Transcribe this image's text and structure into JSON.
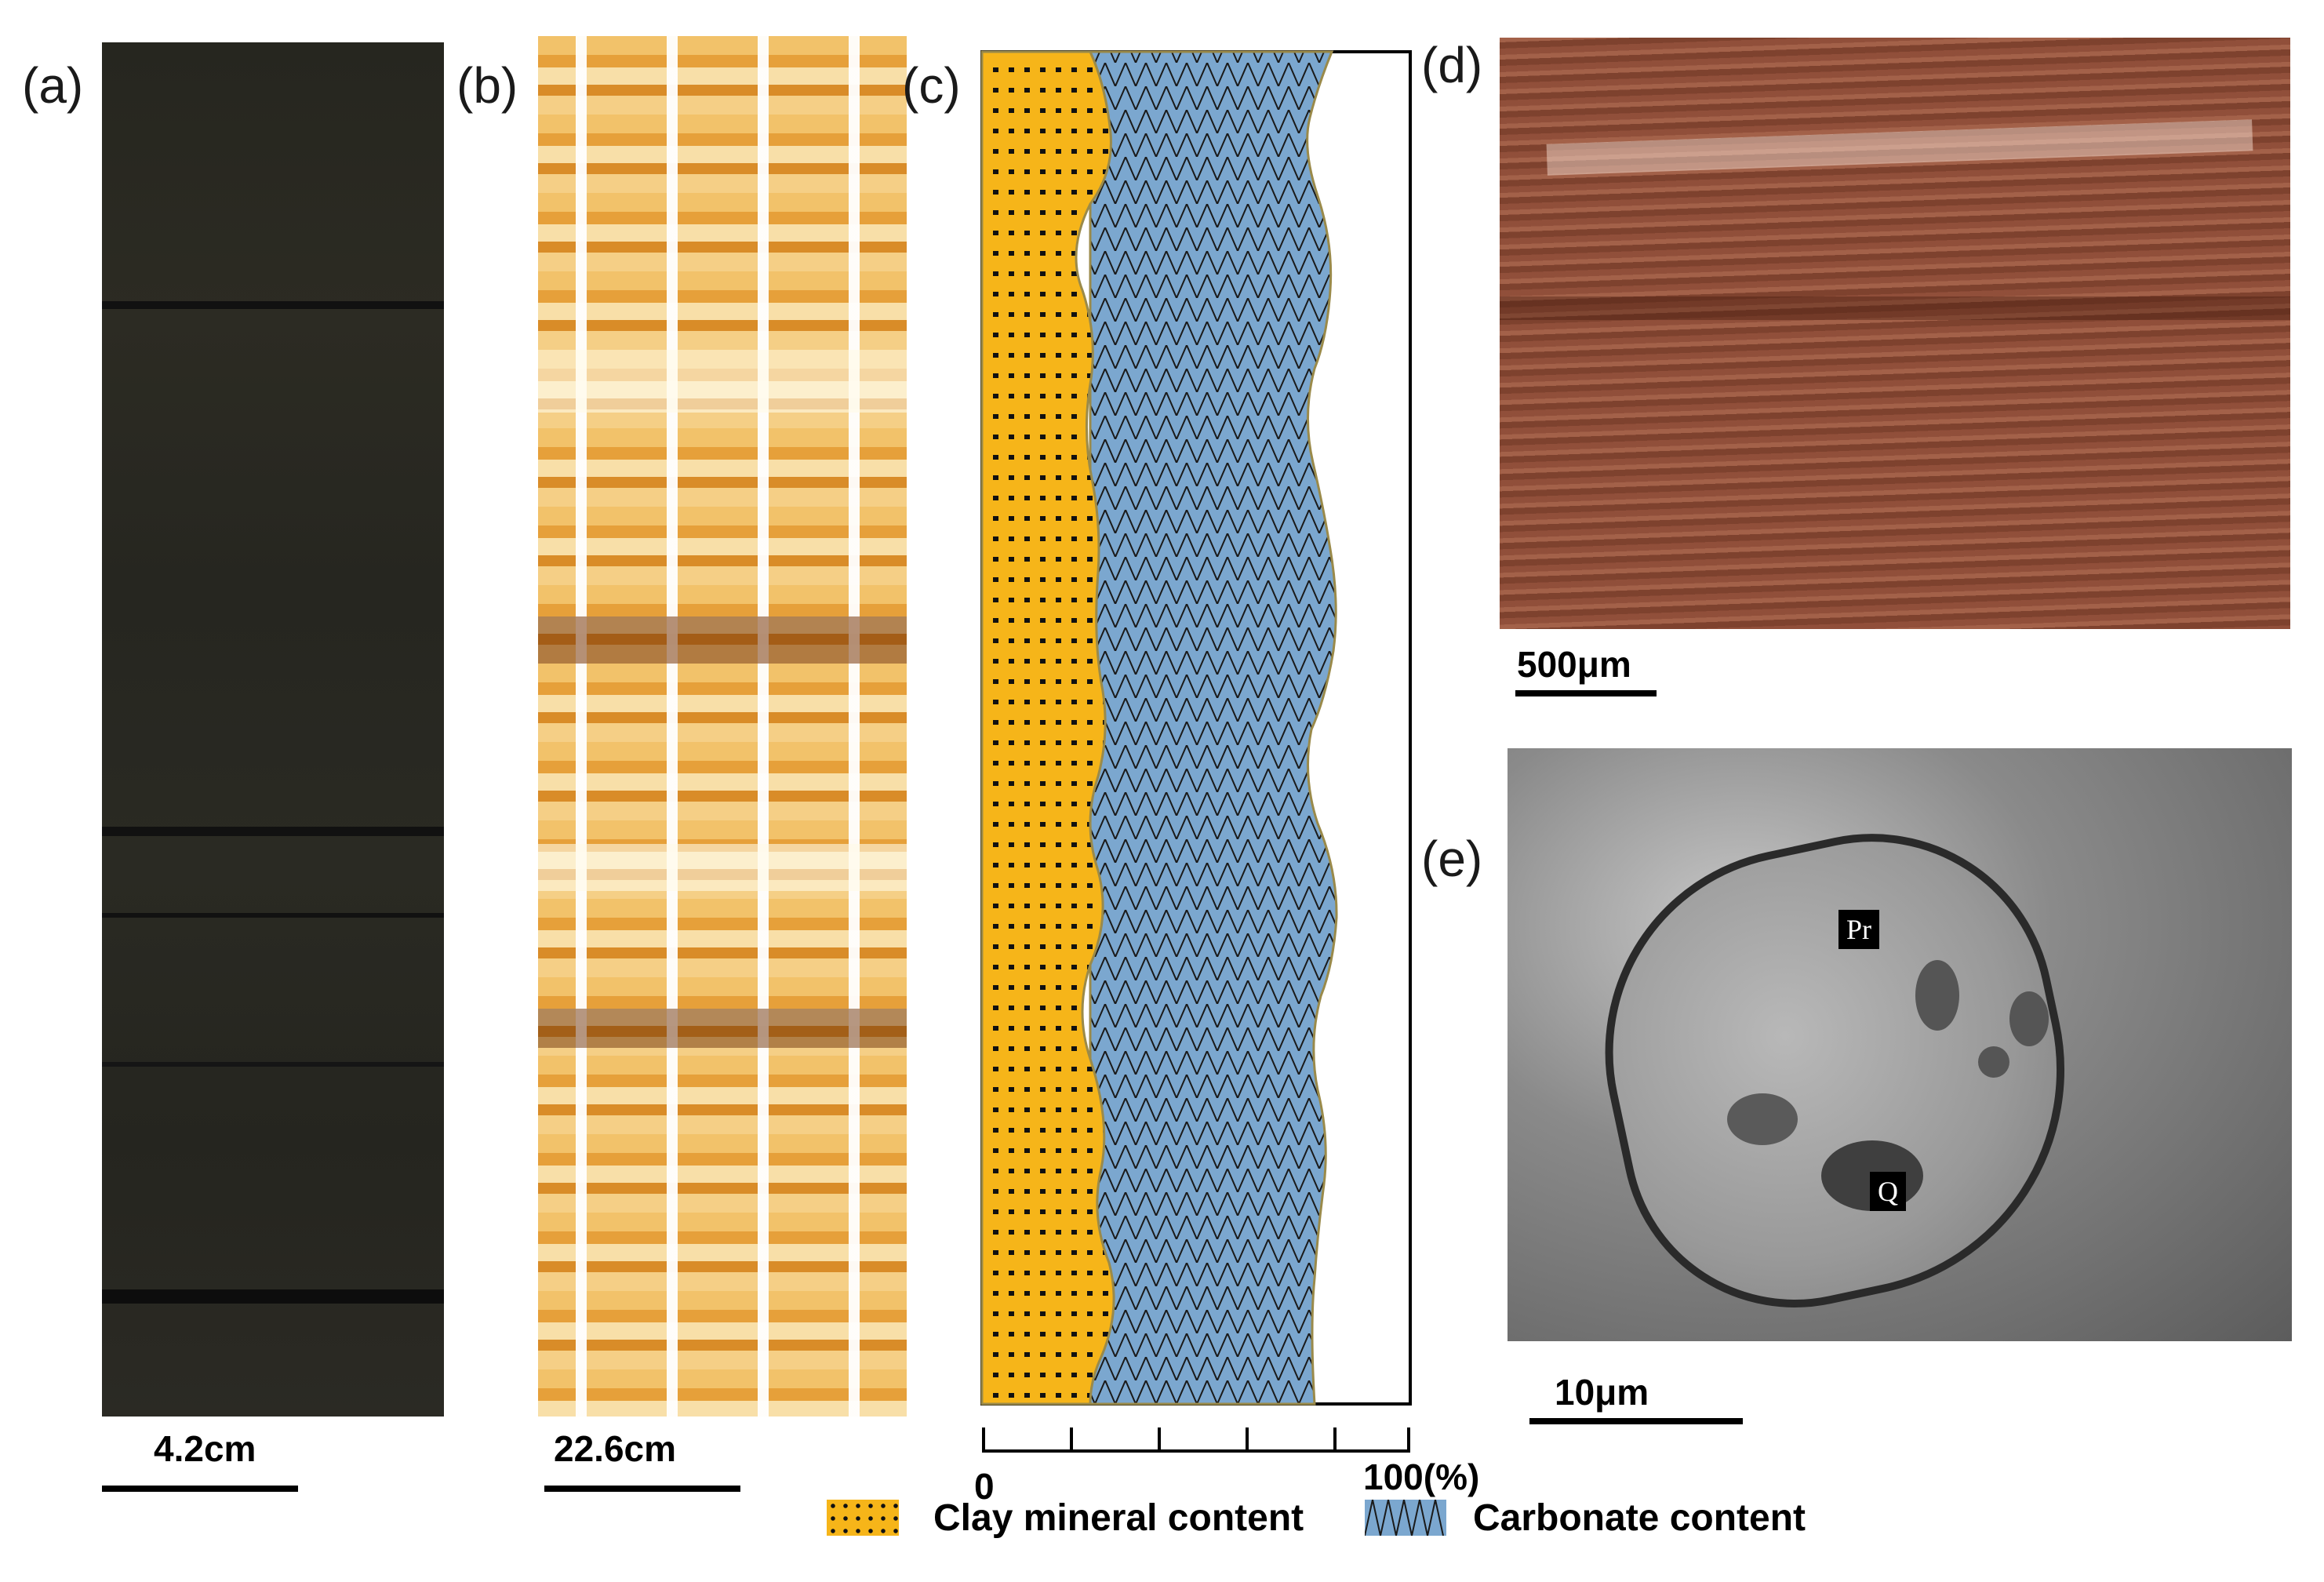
{
  "panels": {
    "a": {
      "label": "(a)",
      "scale": "4.2cm"
    },
    "b": {
      "label": "(b)",
      "scale": "22.6cm"
    },
    "c": {
      "label": "(c)",
      "axis_min": "0",
      "axis_max": "100(%)"
    },
    "d": {
      "label": "(d)",
      "scale": "500μm"
    },
    "e": {
      "label": "(e)",
      "scale": "10μm",
      "tags": [
        "Pr",
        "Q"
      ]
    }
  },
  "legend": {
    "clay": "Clay mineral content",
    "carbonate": "Carbonate content"
  },
  "colors": {
    "clay": "#F6B519",
    "carbonate": "#7BA7CF",
    "core_dark": "#2b2a22",
    "scan_orange": "#E39A2A",
    "thin_section": "#8a4a35",
    "sem_gray": "#9a9a9a"
  }
}
